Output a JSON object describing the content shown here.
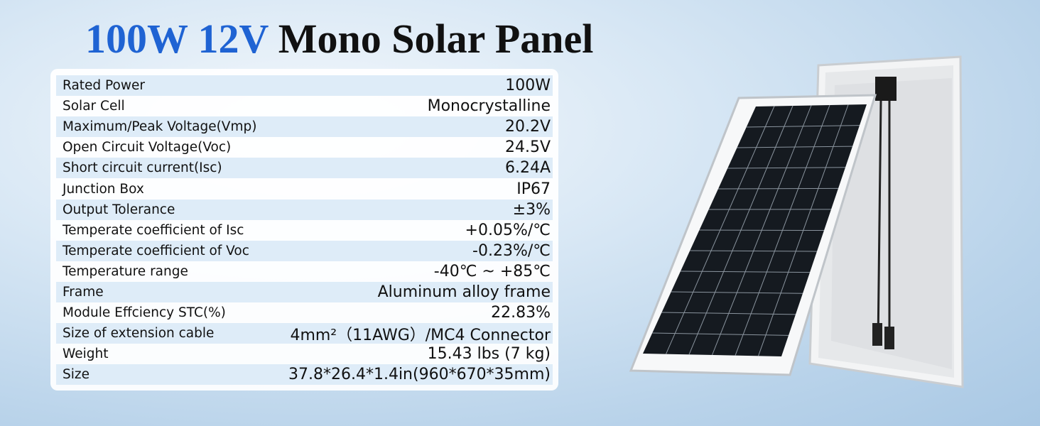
{
  "header": {
    "title_highlight": "100W 12V",
    "title_rest": "Mono Solar Panel"
  },
  "table": {
    "rows": [
      [
        "Rated Power",
        "100W"
      ],
      [
        "Solar Cell",
        "Monocrystalline"
      ],
      [
        "Maximum/Peak Voltage(Vmp)",
        "20.2V"
      ],
      [
        "Open Circuit Voltage(Voc)",
        "24.5V"
      ],
      [
        "Short circuit current(Isc)",
        "6.24A"
      ],
      [
        "Junction Box",
        "IP67"
      ],
      [
        "Output Tolerance",
        "±3%"
      ],
      [
        "Temperate coefficient of Isc",
        "+0.05%/℃"
      ],
      [
        "Temperate coefficient of Voc",
        "-0.23%/℃"
      ],
      [
        "Temperature range",
        "-40℃ ~ +85℃"
      ],
      [
        "Frame",
        "Aluminum alloy frame"
      ],
      [
        "Module Effciency STC(%)",
        "22.83%"
      ],
      [
        "Size of extension cable",
        "4mm²（11AWG）/MC4 Connector"
      ],
      [
        "Weight",
        "15.43 lbs (7 kg)"
      ],
      [
        "Size",
        "37.8*26.4*1.4in(960*670*35mm)"
      ]
    ]
  }
}
